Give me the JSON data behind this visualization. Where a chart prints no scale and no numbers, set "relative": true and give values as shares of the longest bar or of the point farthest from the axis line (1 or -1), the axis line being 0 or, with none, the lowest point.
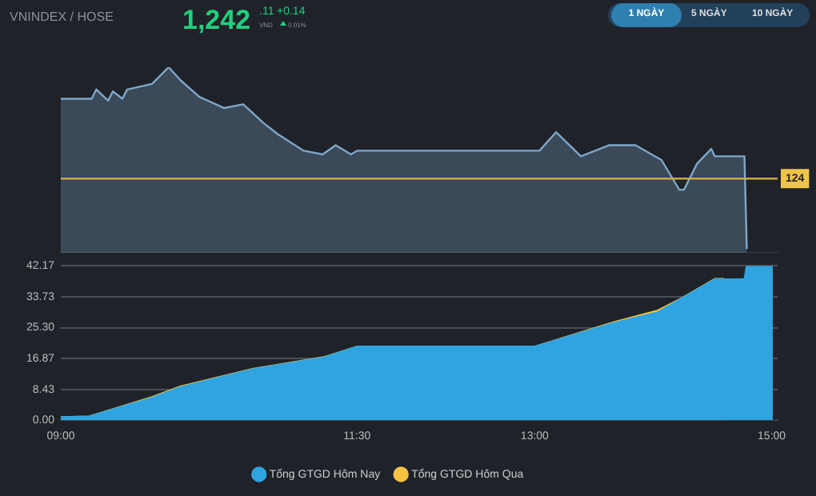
{
  "chart_data": [
    {
      "type": "area",
      "relative": true,
      "xlim": [
        9,
        15.05
      ],
      "tick_labels": false,
      "grid": false,
      "legend": false,
      "marker": "none",
      "annotations": [
        "VNINDEX / HOSE",
        "1,242",
        ".11",
        "VND",
        "+0.14",
        "0.01%",
        "1 NGÀY",
        "5 NGÀY",
        "10 NGÀY",
        {
          "text": "124",
          "y": 0.4
        }
      ],
      "ref_lines": [
        {
          "axis": "y",
          "value": 0.4,
          "color": "#c9a94a"
        }
      ],
      "series": [
        {
          "color": "#7fa7c9",
          "x": [
            9,
            9.26,
            9.3,
            9.4,
            9.44,
            9.52,
            9.56,
            9.77,
            9.91,
            10.01,
            10.17,
            10.38,
            10.54,
            10.71,
            10.83,
            11.05,
            11.21,
            11.32,
            11.45,
            11.5,
            13.04,
            13.18,
            13.39,
            13.63,
            13.85,
            14.07,
            14.22,
            14.26,
            14.37,
            14.49,
            14.52,
            14.77,
            14.79
          ],
          "values": [
            0.83,
            0.83,
            0.88,
            0.82,
            0.87,
            0.83,
            0.88,
            0.91,
            1,
            0.93,
            0.84,
            0.78,
            0.8,
            0.7,
            0.64,
            0.55,
            0.53,
            0.58,
            0.53,
            0.55,
            0.55,
            0.65,
            0.52,
            0.58,
            0.58,
            0.5,
            0.34,
            0.34,
            0.48,
            0.56,
            0.52,
            0.52,
            0.02
          ]
        }
      ]
    },
    {
      "type": "area",
      "xlim": [
        9,
        15.05
      ],
      "xticks": [
        {
          "value": 9,
          "label": "09:00"
        },
        {
          "value": 11.5,
          "label": "11:30"
        },
        {
          "value": 13,
          "label": "13:00"
        },
        {
          "value": 15,
          "label": "15:00"
        }
      ],
      "ylim": [
        0,
        42.17
      ],
      "yticks": [
        {
          "value": 0,
          "label": "0.00"
        },
        {
          "value": 8.43,
          "label": "8.43"
        },
        {
          "value": 16.87,
          "label": "16.87"
        },
        {
          "value": 25.3,
          "label": "25.30"
        },
        {
          "value": 33.73,
          "label": "33.73"
        },
        {
          "value": 42.17,
          "label": "42.17"
        }
      ],
      "grid": "y",
      "legend": "bottom",
      "marker": "none",
      "series": [
        {
          "name": "Tổng GTGD Hôm Nay",
          "color": "#2fa4e0",
          "x": [
            9,
            9.24,
            9.77,
            10.01,
            10.62,
            11.23,
            11.5,
            13,
            13.67,
            14.04,
            14.52,
            14.77,
            14.79,
            15.01
          ],
          "values": [
            0.8,
            1,
            6.1,
            9,
            13.9,
            17.2,
            20.1,
            20.1,
            26.6,
            29.5,
            38.5,
            38.5,
            42.17,
            42.17
          ]
        },
        {
          "name": "Tổng GTGD Hôm Qua",
          "color": "#f5c242",
          "x": [
            9,
            9.24,
            9.77,
            10.01,
            10.62,
            11.23,
            11.5,
            13,
            13.67,
            14.04,
            14.25,
            14.52,
            14.6
          ],
          "values": [
            0.8,
            1,
            6.3,
            9.2,
            14,
            17.3,
            20.1,
            20.1,
            26.8,
            30,
            33.5,
            38.6,
            38.6
          ]
        }
      ]
    }
  ]
}
